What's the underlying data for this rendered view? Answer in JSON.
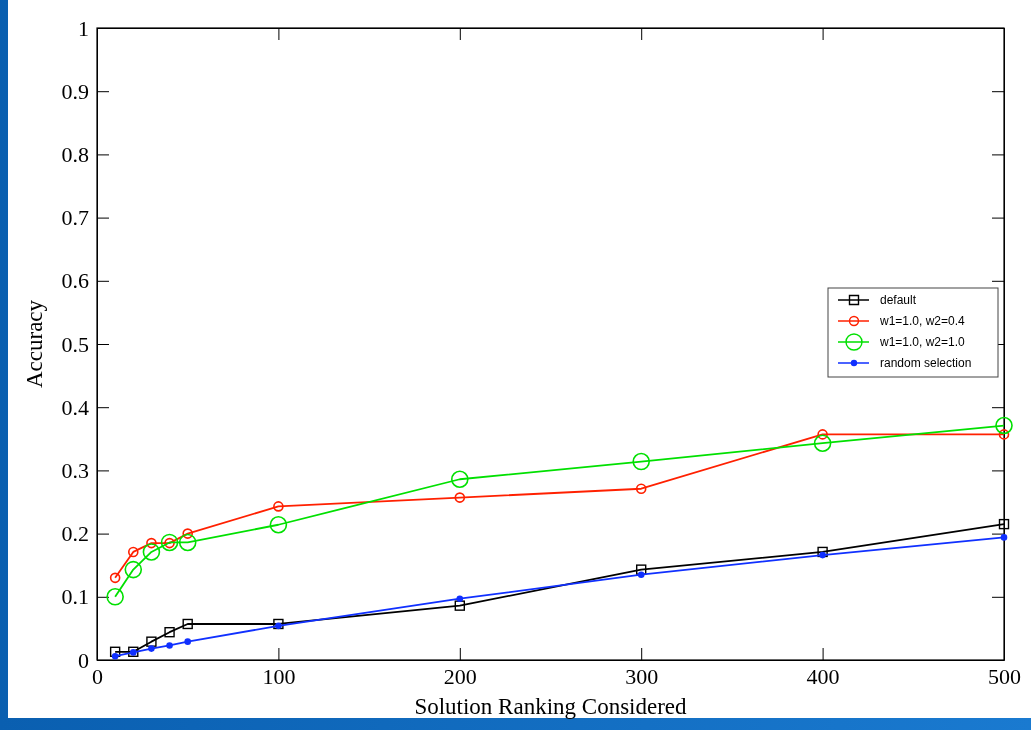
{
  "chart_data": {
    "type": "line",
    "xlabel": "Solution Ranking Considered",
    "ylabel": "Accuracy",
    "x": [
      10,
      20,
      30,
      40,
      50,
      100,
      200,
      300,
      400,
      500
    ],
    "xlim": [
      0,
      500
    ],
    "xticks": [
      0,
      100,
      200,
      300,
      400,
      500
    ],
    "ylim": [
      0,
      1
    ],
    "yticks": [
      0,
      0.1,
      0.2,
      0.3,
      0.4,
      0.5,
      0.6,
      0.7,
      0.8,
      0.9,
      1
    ],
    "grid": false,
    "legend": "right",
    "line_style": "solid",
    "series": [
      {
        "name": "default",
        "color": "#000000",
        "marker": "square",
        "values": [
          0.013,
          0.013,
          0.029,
          0.044,
          0.057,
          0.057,
          0.086,
          0.143,
          0.171,
          0.215
        ]
      },
      {
        "name": "w1=1.0, w2=0.4",
        "color": "#ff2000",
        "marker": "circle",
        "values": [
          0.13,
          0.171,
          0.185,
          0.185,
          0.2,
          0.243,
          0.257,
          0.271,
          0.357,
          0.357
        ]
      },
      {
        "name": "w1=1.0, w2=1.0",
        "color": "#00e000",
        "marker": "circle",
        "values": [
          0.1,
          0.143,
          0.171,
          0.186,
          0.186,
          0.214,
          0.286,
          0.314,
          0.343,
          0.371
        ]
      },
      {
        "name": "random selection",
        "color": "#1030ff",
        "marker": "circle",
        "values": [
          0.006,
          0.012,
          0.018,
          0.023,
          0.029,
          0.054,
          0.097,
          0.135,
          0.166,
          0.194
        ]
      }
    ]
  }
}
